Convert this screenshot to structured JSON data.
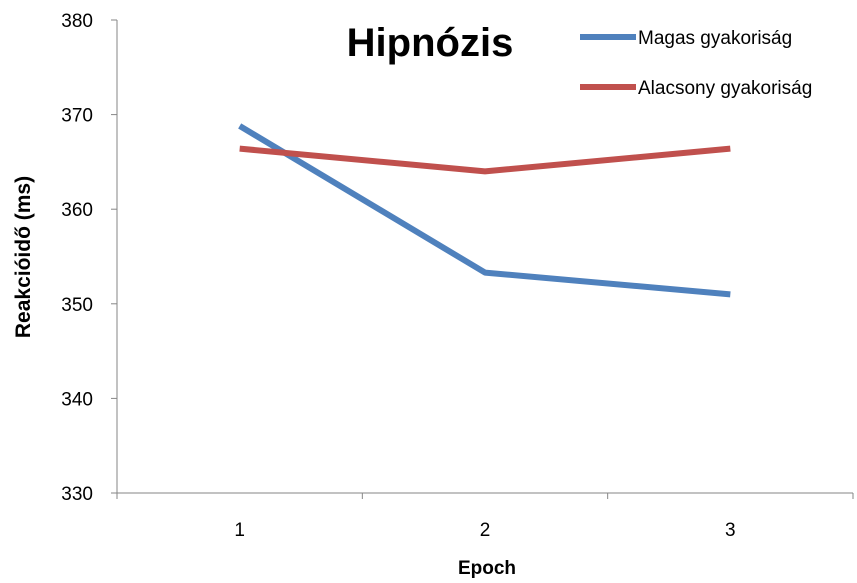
{
  "chart_data": {
    "type": "line",
    "title": "Hipnózis",
    "xlabel": "Epoch",
    "ylabel": "Reakcióidő (ms)",
    "categories": [
      "1",
      "2",
      "3"
    ],
    "ylim": [
      330,
      380
    ],
    "yticks": [
      330,
      340,
      350,
      360,
      370,
      380
    ],
    "grid": false,
    "legend_position": "top-right",
    "series": [
      {
        "name": "Magas gyakoriság",
        "color": "#4F81BD",
        "values": [
          368.8,
          353.3,
          351.0
        ]
      },
      {
        "name": "Alacsony gyakoriság",
        "color": "#C0504D",
        "values": [
          366.4,
          364.0,
          366.4
        ]
      }
    ]
  }
}
